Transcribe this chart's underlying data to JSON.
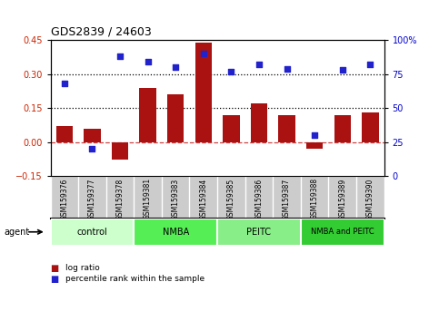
{
  "title": "GDS2839 / 24603",
  "samples": [
    "GSM159376",
    "GSM159377",
    "GSM159378",
    "GSM159381",
    "GSM159383",
    "GSM159384",
    "GSM159385",
    "GSM159386",
    "GSM159387",
    "GSM159388",
    "GSM159389",
    "GSM159390"
  ],
  "log_ratio": [
    0.07,
    0.06,
    -0.08,
    0.24,
    0.21,
    0.44,
    0.12,
    0.17,
    0.12,
    -0.03,
    0.12,
    0.13
  ],
  "percentile": [
    68,
    20,
    88,
    84,
    80,
    90,
    77,
    82,
    79,
    30,
    78,
    82
  ],
  "bar_color": "#aa1111",
  "dot_color": "#2222cc",
  "ylim_left": [
    -0.15,
    0.45
  ],
  "ylim_right": [
    0,
    100
  ],
  "yticks_left": [
    -0.15,
    0.0,
    0.15,
    0.3,
    0.45
  ],
  "yticks_right": [
    0,
    25,
    50,
    75,
    100
  ],
  "hlines": [
    0.15,
    0.3
  ],
  "groups": [
    {
      "label": "control",
      "start": 0,
      "end": 3,
      "color": "#ccffcc"
    },
    {
      "label": "NMBA",
      "start": 3,
      "end": 6,
      "color": "#55ee55"
    },
    {
      "label": "PEITC",
      "start": 6,
      "end": 9,
      "color": "#88ee88"
    },
    {
      "label": "NMBA and PEITC",
      "start": 9,
      "end": 12,
      "color": "#33cc33"
    }
  ],
  "agent_label": "agent",
  "legend_bar_label": "log ratio",
  "legend_dot_label": "percentile rank within the sample",
  "background_color": "#ffffff",
  "plot_bg_color": "#ffffff",
  "tick_label_color_left": "#cc2200",
  "tick_label_color_right": "#0000cc",
  "sample_cell_color": "#cccccc",
  "sample_cell_border": "#888888"
}
